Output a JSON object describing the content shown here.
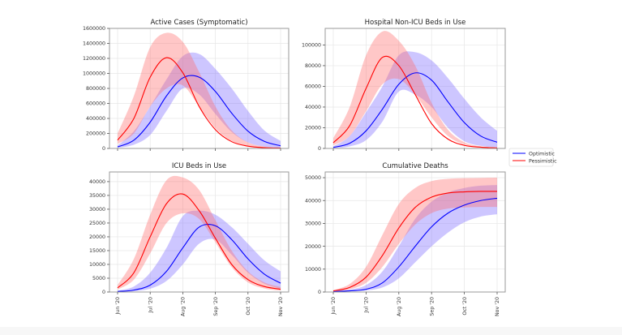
{
  "chart_data": [
    {
      "type": "line",
      "title": "Active Cases (Symptomatic)",
      "xlabel": "",
      "ylabel": "",
      "x_unit": "months since 1 Jun 2020",
      "x": [
        0,
        0.5,
        1,
        1.5,
        2,
        2.5,
        3,
        3.5,
        4,
        4.5,
        5
      ],
      "xticks": [
        0,
        1,
        2,
        3,
        4,
        5
      ],
      "xtick_labels": [
        "Jun '20",
        "Jul '20",
        "Aug '20",
        "Sep '20",
        "Oct '20",
        "Nov '20"
      ],
      "show_xtick_labels": false,
      "yticks": [
        0,
        200000,
        400000,
        600000,
        800000,
        1000000,
        1200000,
        1400000,
        1600000
      ],
      "ylim": [
        0,
        1600000
      ],
      "grid": true,
      "series": [
        {
          "name": "Optimistic",
          "color": "#0000ff",
          "values": [
            20000,
            110000,
            350000,
            700000,
            940000,
            950000,
            760000,
            470000,
            230000,
            95000,
            35000
          ],
          "band_lower": [
            8000,
            50000,
            180000,
            500000,
            800000,
            720000,
            460000,
            220000,
            80000,
            25000,
            8000
          ],
          "band_upper": [
            40000,
            230000,
            560000,
            920000,
            1230000,
            1260000,
            1060000,
            800000,
            500000,
            240000,
            100000
          ]
        },
        {
          "name": "Pessimistic",
          "color": "#ff0000",
          "values": [
            110000,
            400000,
            950000,
            1210000,
            1010000,
            560000,
            250000,
            90000,
            30000,
            10000,
            5000
          ],
          "band_lower": [
            60000,
            200000,
            560000,
            800000,
            840000,
            560000,
            270000,
            100000,
            30000,
            8000,
            2000
          ],
          "band_upper": [
            200000,
            700000,
            1350000,
            1540000,
            1420000,
            1020000,
            560000,
            240000,
            80000,
            25000,
            8000
          ]
        }
      ]
    },
    {
      "type": "line",
      "title": "Hospital Non-ICU Beds in Use",
      "xlabel": "",
      "ylabel": "",
      "x_unit": "months since 1 Jun 2020",
      "x": [
        0,
        0.5,
        1,
        1.5,
        2,
        2.5,
        3,
        3.5,
        4,
        4.5,
        5
      ],
      "xticks": [
        0,
        1,
        2,
        3,
        4,
        5
      ],
      "xtick_labels": [
        "Jun '20",
        "Jul '20",
        "Aug '20",
        "Sep '20",
        "Oct '20",
        "Nov '20"
      ],
      "show_xtick_labels": false,
      "yticks": [
        0,
        20000,
        40000,
        60000,
        80000,
        100000
      ],
      "ylim": [
        0,
        116000
      ],
      "grid": true,
      "series": [
        {
          "name": "Optimistic",
          "color": "#0000ff",
          "values": [
            1000,
            5000,
            17000,
            38000,
            62000,
            73000,
            66000,
            45000,
            25000,
            12000,
            6000
          ],
          "band_lower": [
            300,
            2000,
            8000,
            26000,
            55000,
            52000,
            40000,
            20000,
            7000,
            2500,
            1000
          ],
          "band_upper": [
            2000,
            12000,
            35000,
            60000,
            90000,
            93000,
            85000,
            68000,
            48000,
            30000,
            17000
          ]
        },
        {
          "name": "Pessimistic",
          "color": "#ff0000",
          "values": [
            5500,
            22000,
            58000,
            88000,
            80000,
            52000,
            24000,
            9000,
            3000,
            1200,
            500
          ],
          "band_lower": [
            3000,
            12000,
            36000,
            62000,
            67000,
            52000,
            30000,
            12000,
            4000,
            1500,
            500
          ],
          "band_upper": [
            10000,
            40000,
            90000,
            113000,
            104000,
            80000,
            44000,
            18000,
            6000,
            2000,
            800
          ]
        }
      ]
    },
    {
      "type": "line",
      "title": "ICU Beds in Use",
      "xlabel": "",
      "ylabel": "",
      "x_unit": "months since 1 Jun 2020",
      "x": [
        0,
        0.5,
        1,
        1.5,
        2,
        2.5,
        3,
        3.5,
        4,
        4.5,
        5
      ],
      "xticks": [
        0,
        1,
        2,
        3,
        4,
        5
      ],
      "xtick_labels": [
        "Jun '20",
        "Jul '20",
        "Aug '20",
        "Sep '20",
        "Oct '20",
        "Nov '20"
      ],
      "show_xtick_labels": true,
      "yticks": [
        0,
        5000,
        10000,
        15000,
        20000,
        25000,
        30000,
        35000,
        40000
      ],
      "ylim": [
        0,
        43500
      ],
      "grid": true,
      "series": [
        {
          "name": "Optimistic",
          "color": "#0000ff",
          "values": [
            200,
            700,
            2500,
            7500,
            16000,
            23500,
            24000,
            19000,
            12000,
            6500,
            3200
          ],
          "band_lower": [
            80,
            300,
            1200,
            4000,
            10000,
            17500,
            19000,
            13500,
            7000,
            3000,
            1200
          ],
          "band_upper": [
            500,
            2000,
            7000,
            16000,
            27500,
            29500,
            28000,
            23500,
            17500,
            11500,
            7500
          ]
        },
        {
          "name": "Pessimistic",
          "color": "#ff0000",
          "values": [
            1500,
            7000,
            20000,
            32000,
            35500,
            29500,
            19500,
            10000,
            4500,
            2000,
            1000
          ],
          "band_lower": [
            900,
            4500,
            14000,
            25000,
            28500,
            26500,
            18000,
            9000,
            3500,
            1300,
            500
          ],
          "band_upper": [
            2500,
            12000,
            28000,
            40500,
            41500,
            37000,
            26000,
            15000,
            7500,
            3500,
            1800
          ]
        }
      ]
    },
    {
      "type": "line",
      "title": "Cumulative Deaths",
      "xlabel": "",
      "ylabel": "",
      "x_unit": "months since 1 Jun 2020",
      "x": [
        0,
        0.5,
        1,
        1.5,
        2,
        2.5,
        3,
        3.5,
        4,
        4.5,
        5
      ],
      "xticks": [
        0,
        1,
        2,
        3,
        4,
        5
      ],
      "xtick_labels": [
        "Jun '20",
        "Jul '20",
        "Aug '20",
        "Sep '20",
        "Oct '20",
        "Nov '20"
      ],
      "show_xtick_labels": true,
      "yticks": [
        0,
        10000,
        20000,
        30000,
        40000,
        50000
      ],
      "ylim": [
        0,
        52500
      ],
      "grid": true,
      "series": [
        {
          "name": "Optimistic",
          "color": "#0000ff",
          "values": [
            200,
            500,
            1200,
            4000,
            11000,
            20000,
            28500,
            34500,
            38000,
            40000,
            41000
          ],
          "band_lower": [
            100,
            300,
            700,
            2000,
            6000,
            13000,
            20000,
            26000,
            30500,
            33000,
            34000
          ],
          "band_upper": [
            400,
            1000,
            3000,
            9000,
            20000,
            32000,
            39500,
            43500,
            45500,
            46500,
            46800
          ]
        },
        {
          "name": "Pessimistic",
          "color": "#ff0000",
          "values": [
            500,
            2000,
            6500,
            16000,
            28000,
            37000,
            41500,
            43300,
            43800,
            44000,
            44000
          ],
          "band_lower": [
            300,
            1200,
            4000,
            11000,
            21000,
            29500,
            34500,
            36500,
            37000,
            37200,
            37200
          ],
          "band_upper": [
            800,
            3500,
            11000,
            25000,
            38500,
            45500,
            48500,
            49500,
            49800,
            49900,
            50000
          ]
        }
      ]
    }
  ],
  "legend": {
    "position": "right-center",
    "entries": [
      {
        "label": "Optimistic",
        "color": "#0000ff"
      },
      {
        "label": "Pessimistic",
        "color": "#ff0000"
      }
    ]
  },
  "style": {
    "optimistic_band_color": "#7b68ff",
    "pessimistic_band_color": "#ff6b6b"
  }
}
